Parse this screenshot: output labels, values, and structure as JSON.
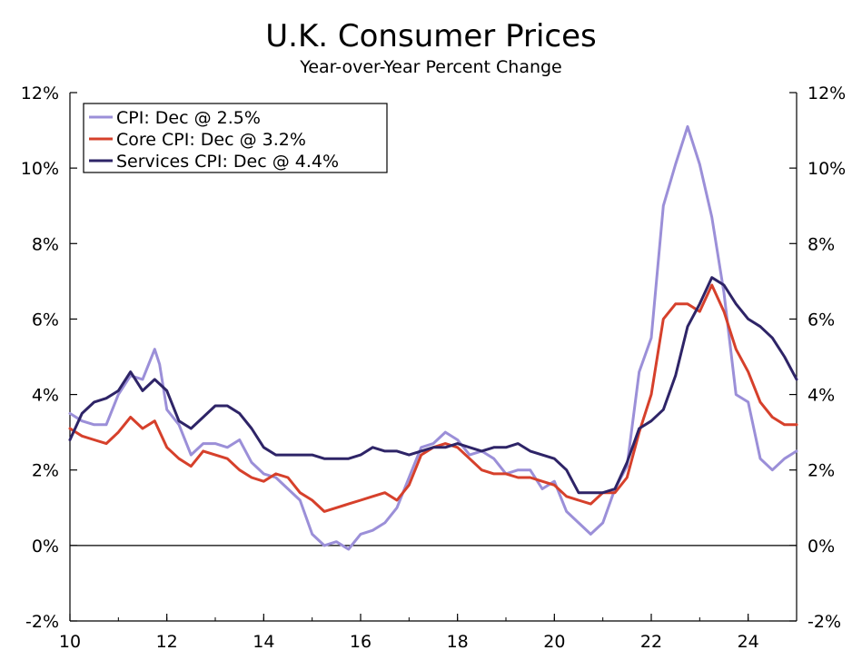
{
  "chart_data": {
    "type": "line",
    "title": "U.K. Consumer Prices",
    "subtitle": "Year-over-Year Percent Change",
    "x_range": [
      2010,
      2025
    ],
    "x_ticks": [
      10,
      12,
      14,
      16,
      18,
      20,
      22,
      24
    ],
    "x_tick_labels": [
      "10",
      "12",
      "14",
      "16",
      "18",
      "20",
      "22",
      "24"
    ],
    "ylim": [
      -2,
      12
    ],
    "y_ticks": [
      -2,
      0,
      2,
      4,
      6,
      8,
      10,
      12
    ],
    "y_tick_labels": [
      "-2%",
      "0%",
      "2%",
      "4%",
      "6%",
      "8%",
      "10%",
      "12%"
    ],
    "grid": false,
    "legend_position": "top-left",
    "zero_line": true,
    "series": [
      {
        "name": "CPI: Dec @ 2.5%",
        "color": "#9b8fd8",
        "points": [
          [
            2010.0,
            3.5
          ],
          [
            2010.25,
            3.3
          ],
          [
            2010.5,
            3.2
          ],
          [
            2010.75,
            3.2
          ],
          [
            2011.0,
            4.0
          ],
          [
            2011.25,
            4.5
          ],
          [
            2011.5,
            4.4
          ],
          [
            2011.75,
            5.2
          ],
          [
            2011.85,
            4.8
          ],
          [
            2012.0,
            3.6
          ],
          [
            2012.25,
            3.2
          ],
          [
            2012.5,
            2.4
          ],
          [
            2012.75,
            2.7
          ],
          [
            2013.0,
            2.7
          ],
          [
            2013.25,
            2.6
          ],
          [
            2013.5,
            2.8
          ],
          [
            2013.75,
            2.2
          ],
          [
            2014.0,
            1.9
          ],
          [
            2014.25,
            1.8
          ],
          [
            2014.5,
            1.5
          ],
          [
            2014.75,
            1.2
          ],
          [
            2015.0,
            0.3
          ],
          [
            2015.25,
            0.0
          ],
          [
            2015.5,
            0.1
          ],
          [
            2015.75,
            -0.1
          ],
          [
            2016.0,
            0.3
          ],
          [
            2016.25,
            0.4
          ],
          [
            2016.5,
            0.6
          ],
          [
            2016.75,
            1.0
          ],
          [
            2017.0,
            1.8
          ],
          [
            2017.25,
            2.6
          ],
          [
            2017.5,
            2.7
          ],
          [
            2017.75,
            3.0
          ],
          [
            2018.0,
            2.8
          ],
          [
            2018.25,
            2.4
          ],
          [
            2018.5,
            2.5
          ],
          [
            2018.75,
            2.3
          ],
          [
            2019.0,
            1.9
          ],
          [
            2019.25,
            2.0
          ],
          [
            2019.5,
            2.0
          ],
          [
            2019.75,
            1.5
          ],
          [
            2020.0,
            1.7
          ],
          [
            2020.25,
            0.9
          ],
          [
            2020.5,
            0.6
          ],
          [
            2020.75,
            0.3
          ],
          [
            2021.0,
            0.6
          ],
          [
            2021.25,
            1.5
          ],
          [
            2021.5,
            2.1
          ],
          [
            2021.75,
            4.6
          ],
          [
            2022.0,
            5.5
          ],
          [
            2022.25,
            9.0
          ],
          [
            2022.5,
            10.1
          ],
          [
            2022.75,
            11.1
          ],
          [
            2022.9,
            10.5
          ],
          [
            2023.0,
            10.1
          ],
          [
            2023.25,
            8.7
          ],
          [
            2023.5,
            6.7
          ],
          [
            2023.75,
            4.0
          ],
          [
            2024.0,
            3.8
          ],
          [
            2024.25,
            2.3
          ],
          [
            2024.5,
            2.0
          ],
          [
            2024.75,
            2.3
          ],
          [
            2025.0,
            2.5
          ]
        ]
      },
      {
        "name": "Core CPI: Dec @ 3.2%",
        "color": "#d6402b",
        "points": [
          [
            2010.0,
            3.1
          ],
          [
            2010.25,
            2.9
          ],
          [
            2010.5,
            2.8
          ],
          [
            2010.75,
            2.7
          ],
          [
            2011.0,
            3.0
          ],
          [
            2011.25,
            3.4
          ],
          [
            2011.5,
            3.1
          ],
          [
            2011.75,
            3.3
          ],
          [
            2012.0,
            2.6
          ],
          [
            2012.25,
            2.3
          ],
          [
            2012.5,
            2.1
          ],
          [
            2012.75,
            2.5
          ],
          [
            2013.0,
            2.4
          ],
          [
            2013.25,
            2.3
          ],
          [
            2013.5,
            2.0
          ],
          [
            2013.75,
            1.8
          ],
          [
            2014.0,
            1.7
          ],
          [
            2014.25,
            1.9
          ],
          [
            2014.5,
            1.8
          ],
          [
            2014.75,
            1.4
          ],
          [
            2015.0,
            1.2
          ],
          [
            2015.25,
            0.9
          ],
          [
            2015.5,
            1.0
          ],
          [
            2015.75,
            1.1
          ],
          [
            2016.0,
            1.2
          ],
          [
            2016.25,
            1.3
          ],
          [
            2016.5,
            1.4
          ],
          [
            2016.75,
            1.2
          ],
          [
            2017.0,
            1.6
          ],
          [
            2017.25,
            2.4
          ],
          [
            2017.5,
            2.6
          ],
          [
            2017.75,
            2.7
          ],
          [
            2018.0,
            2.6
          ],
          [
            2018.25,
            2.3
          ],
          [
            2018.5,
            2.0
          ],
          [
            2018.75,
            1.9
          ],
          [
            2019.0,
            1.9
          ],
          [
            2019.25,
            1.8
          ],
          [
            2019.5,
            1.8
          ],
          [
            2019.75,
            1.7
          ],
          [
            2020.0,
            1.6
          ],
          [
            2020.25,
            1.3
          ],
          [
            2020.5,
            1.2
          ],
          [
            2020.75,
            1.1
          ],
          [
            2021.0,
            1.4
          ],
          [
            2021.25,
            1.4
          ],
          [
            2021.5,
            1.8
          ],
          [
            2021.75,
            3.0
          ],
          [
            2022.0,
            4.0
          ],
          [
            2022.25,
            6.0
          ],
          [
            2022.5,
            6.4
          ],
          [
            2022.75,
            6.4
          ],
          [
            2023.0,
            6.2
          ],
          [
            2023.25,
            6.9
          ],
          [
            2023.5,
            6.2
          ],
          [
            2023.75,
            5.2
          ],
          [
            2024.0,
            4.6
          ],
          [
            2024.25,
            3.8
          ],
          [
            2024.5,
            3.4
          ],
          [
            2024.75,
            3.2
          ],
          [
            2025.0,
            3.2
          ]
        ]
      },
      {
        "name": "Services CPI: Dec @ 4.4%",
        "color": "#2e2467",
        "points": [
          [
            2010.0,
            2.8
          ],
          [
            2010.25,
            3.5
          ],
          [
            2010.5,
            3.8
          ],
          [
            2010.75,
            3.9
          ],
          [
            2011.0,
            4.1
          ],
          [
            2011.25,
            4.6
          ],
          [
            2011.5,
            4.1
          ],
          [
            2011.75,
            4.4
          ],
          [
            2012.0,
            4.1
          ],
          [
            2012.25,
            3.3
          ],
          [
            2012.5,
            3.1
          ],
          [
            2012.75,
            3.4
          ],
          [
            2013.0,
            3.7
          ],
          [
            2013.25,
            3.7
          ],
          [
            2013.5,
            3.5
          ],
          [
            2013.75,
            3.1
          ],
          [
            2014.0,
            2.6
          ],
          [
            2014.25,
            2.4
          ],
          [
            2014.5,
            2.4
          ],
          [
            2014.75,
            2.4
          ],
          [
            2015.0,
            2.4
          ],
          [
            2015.25,
            2.3
          ],
          [
            2015.5,
            2.3
          ],
          [
            2015.75,
            2.3
          ],
          [
            2016.0,
            2.4
          ],
          [
            2016.25,
            2.6
          ],
          [
            2016.5,
            2.5
          ],
          [
            2016.75,
            2.5
          ],
          [
            2017.0,
            2.4
          ],
          [
            2017.25,
            2.5
          ],
          [
            2017.5,
            2.6
          ],
          [
            2017.75,
            2.6
          ],
          [
            2018.0,
            2.7
          ],
          [
            2018.25,
            2.6
          ],
          [
            2018.5,
            2.5
          ],
          [
            2018.75,
            2.6
          ],
          [
            2019.0,
            2.6
          ],
          [
            2019.25,
            2.7
          ],
          [
            2019.5,
            2.5
          ],
          [
            2019.75,
            2.4
          ],
          [
            2020.0,
            2.3
          ],
          [
            2020.25,
            2.0
          ],
          [
            2020.5,
            1.4
          ],
          [
            2020.75,
            1.4
          ],
          [
            2021.0,
            1.4
          ],
          [
            2021.25,
            1.5
          ],
          [
            2021.5,
            2.2
          ],
          [
            2021.75,
            3.1
          ],
          [
            2022.0,
            3.3
          ],
          [
            2022.25,
            3.6
          ],
          [
            2022.5,
            4.5
          ],
          [
            2022.75,
            5.8
          ],
          [
            2023.0,
            6.4
          ],
          [
            2023.25,
            7.1
          ],
          [
            2023.5,
            6.9
          ],
          [
            2023.75,
            6.4
          ],
          [
            2024.0,
            6.0
          ],
          [
            2024.25,
            5.8
          ],
          [
            2024.5,
            5.5
          ],
          [
            2024.75,
            5.0
          ],
          [
            2025.0,
            4.4
          ]
        ]
      }
    ]
  }
}
